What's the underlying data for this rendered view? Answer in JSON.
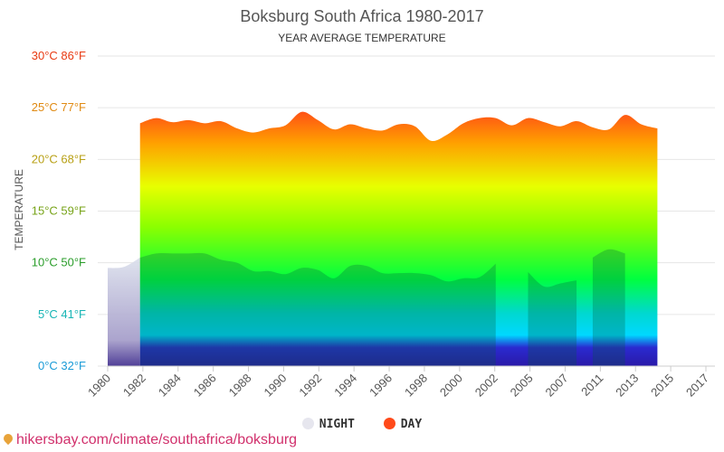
{
  "title": "Boksburg South Africa 1980-2017",
  "subtitle": "YEAR AVERAGE TEMPERATURE",
  "footer": "hikersbay.com/climate/southafrica/boksburg",
  "legend": {
    "night": "NIGHT",
    "day": "DAY",
    "night_color": "#e6e6ee",
    "day_color": "#ff4a1a"
  },
  "chart_data": {
    "type": "area",
    "title": "Boksburg South Africa 1980-2017",
    "subtitle": "YEAR AVERAGE TEMPERATURE",
    "ylabel": "TEMPERATURE",
    "ylim": [
      0,
      30
    ],
    "xlim": [
      1980,
      2017
    ],
    "y_ticks": [
      {
        "value": 0,
        "label": "0°C 32°F",
        "color": "#1a9bd7"
      },
      {
        "value": 5,
        "label": "5°C 41°F",
        "color": "#17b5b5"
      },
      {
        "value": 10,
        "label": "10°C 50°F",
        "color": "#2a9d2a"
      },
      {
        "value": 15,
        "label": "15°C 59°F",
        "color": "#77a318"
      },
      {
        "value": 20,
        "label": "20°C 68°F",
        "color": "#b8a015"
      },
      {
        "value": 25,
        "label": "25°C 77°F",
        "color": "#e08a12"
      },
      {
        "value": 30,
        "label": "30°C 86°F",
        "color": "#e83a12"
      }
    ],
    "x_ticks": [
      "1980",
      "1982",
      "1984",
      "1986",
      "1988",
      "1990",
      "1992",
      "1994",
      "1996",
      "1998",
      "2000",
      "2002",
      "2005",
      "2007",
      "2011",
      "2013",
      "2015",
      "2017"
    ],
    "series": [
      {
        "name": "DAY",
        "segments": [
          [
            [
              1982,
              23.5
            ],
            [
              1983,
              24.0
            ],
            [
              1984,
              23.6
            ],
            [
              1985,
              23.8
            ],
            [
              1986,
              23.5
            ],
            [
              1987,
              23.7
            ],
            [
              1988,
              23.0
            ],
            [
              1989,
              22.6
            ],
            [
              1990,
              23.0
            ],
            [
              1991,
              23.3
            ],
            [
              1992,
              24.6
            ],
            [
              1993,
              23.8
            ],
            [
              1994,
              22.9
            ],
            [
              1995,
              23.4
            ],
            [
              1996,
              23.0
            ],
            [
              1997,
              22.8
            ],
            [
              1998,
              23.4
            ],
            [
              1999,
              23.2
            ],
            [
              2000,
              21.8
            ],
            [
              2001,
              22.4
            ],
            [
              2002,
              23.5
            ],
            [
              2003,
              24.0
            ],
            [
              2004,
              24.0
            ],
            [
              2005,
              23.3
            ],
            [
              2006,
              24.0
            ],
            [
              2007,
              23.6
            ],
            [
              2008,
              23.2
            ],
            [
              2009,
              23.7
            ],
            [
              2010,
              23.1
            ],
            [
              2011,
              22.9
            ],
            [
              2012,
              24.3
            ],
            [
              2013,
              23.4
            ],
            [
              2014,
              23.0
            ]
          ]
        ]
      },
      {
        "name": "NIGHT",
        "segments": [
          [
            [
              1980,
              9.5
            ],
            [
              1981,
              9.6
            ],
            [
              1982,
              10.5
            ],
            [
              1983,
              10.9
            ],
            [
              1984,
              10.9
            ],
            [
              1985,
              10.9
            ],
            [
              1986,
              10.9
            ],
            [
              1987,
              10.3
            ],
            [
              1988,
              10.0
            ],
            [
              1989,
              9.2
            ],
            [
              1990,
              9.2
            ],
            [
              1991,
              8.9
            ],
            [
              1992,
              9.5
            ],
            [
              1993,
              9.3
            ],
            [
              1994,
              8.5
            ],
            [
              1995,
              9.7
            ],
            [
              1996,
              9.7
            ],
            [
              1997,
              9.0
            ],
            [
              1998,
              9.0
            ],
            [
              1999,
              9.0
            ],
            [
              2000,
              8.8
            ],
            [
              2001,
              8.2
            ],
            [
              2002,
              8.5
            ],
            [
              2003,
              8.6
            ],
            [
              2004,
              9.9
            ]
          ],
          [
            [
              2006,
              9.1
            ],
            [
              2007,
              7.7
            ],
            [
              2008,
              8.0
            ],
            [
              2009,
              8.3
            ]
          ],
          [
            [
              2010,
              10.5
            ],
            [
              2011,
              11.3
            ],
            [
              2012,
              10.9
            ]
          ]
        ]
      }
    ]
  }
}
